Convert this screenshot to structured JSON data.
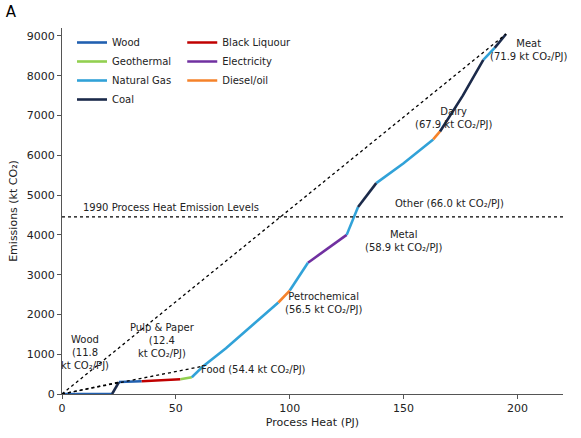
{
  "chart_data": {
    "type": "line",
    "title": "A",
    "x_label": "Process Heat (PJ)",
    "y_label": "Emissions (kt CO₂)",
    "xlim": [
      0,
      220
    ],
    "xticks": [
      0,
      50,
      100,
      150,
      200
    ],
    "ylim": [
      0,
      9200
    ],
    "yticks": [
      0,
      1000,
      2000,
      3000,
      4000,
      5000,
      6000,
      7000,
      8000,
      9000
    ],
    "grid": false,
    "legend": "upper left",
    "series": [
      {
        "name": "Wood",
        "color": "#2160b0",
        "line_style": "solid",
        "x": [
          0,
          22,
          null,
          25,
          35
        ],
        "values": [
          0,
          0,
          null,
          300,
          320
        ]
      },
      {
        "name": "Black Liquour",
        "color": "#c00000",
        "line_style": "solid",
        "x": [
          35,
          52
        ],
        "values": [
          320,
          370
        ]
      },
      {
        "name": "Geothermal",
        "color": "#92d050",
        "line_style": "solid",
        "x": [
          52,
          57
        ],
        "values": [
          370,
          420
        ]
      },
      {
        "name": "Electricity",
        "color": "#7030a0",
        "line_style": "solid",
        "x": [
          108,
          125
        ],
        "values": [
          3300,
          4000
        ]
      },
      {
        "name": "Natural Gas",
        "color": "#31a2d8",
        "line_style": "solid",
        "x": [
          57,
          62,
          72,
          85,
          95,
          null,
          100,
          108,
          null,
          125,
          130,
          null,
          138,
          150,
          163,
          null,
          185,
          190
        ],
        "values": [
          420,
          700,
          1150,
          1800,
          2300,
          null,
          2600,
          3300,
          null,
          4000,
          4700,
          null,
          5300,
          5800,
          6400,
          null,
          8400,
          8700
        ]
      },
      {
        "name": "Diesel/oil",
        "color": "#f5822a",
        "line_style": "solid",
        "x": [
          95,
          100,
          null,
          163,
          166
        ],
        "values": [
          2300,
          2600,
          null,
          6400,
          6600
        ]
      },
      {
        "name": "Coal",
        "color": "#1b2a4a",
        "line_style": "solid",
        "x": [
          22,
          25,
          null,
          130,
          138,
          null,
          166,
          176,
          185,
          null,
          190,
          195
        ],
        "values": [
          0,
          300,
          null,
          4700,
          5300,
          null,
          6600,
          7500,
          8400,
          null,
          8700,
          9050
        ]
      },
      {
        "color": "#000000",
        "line_style": "dotted",
        "x": [
          0,
          25,
          null,
          0,
          62,
          null,
          0,
          195
        ],
        "values": [
          0,
          300,
          null,
          0,
          700,
          null,
          0,
          9050
        ]
      },
      {
        "color": "#000000",
        "line_style": "dotted",
        "x": [
          0,
          220
        ],
        "values": [
          4450,
          4450
        ]
      }
    ],
    "annotations": [
      {
        "text": "Meat\n(71.9 kt CO₂/PJ)",
        "x": 205,
        "y": 8650
      },
      {
        "text": "Dairy\n(67.9 kt CO₂/PJ)",
        "x": 172,
        "y": 6950
      },
      {
        "text": "Other (66.0 kt CO₂/PJ)",
        "x": 170,
        "y": 4780
      },
      {
        "text": "Metal\n(58.9 kt CO₂/PJ)",
        "x": 150,
        "y": 3850
      },
      {
        "text": "Petrochemical\n(56.5 kt CO₂/PJ)",
        "x": 115,
        "y": 2300
      },
      {
        "text": "Food (54.4 kt CO₂/PJ)",
        "x": 84,
        "y": 620
      },
      {
        "text": "Pulp & Paper\n(12.4\nkt CO₂/PJ)",
        "x": 44,
        "y": 1350
      },
      {
        "text": "Wood\n(11.8\nkt CO₂/PJ)",
        "x": 10,
        "y": 1050
      },
      {
        "text": "1990 Process Heat Emission Levels",
        "x": 48,
        "y": 4680
      }
    ]
  }
}
